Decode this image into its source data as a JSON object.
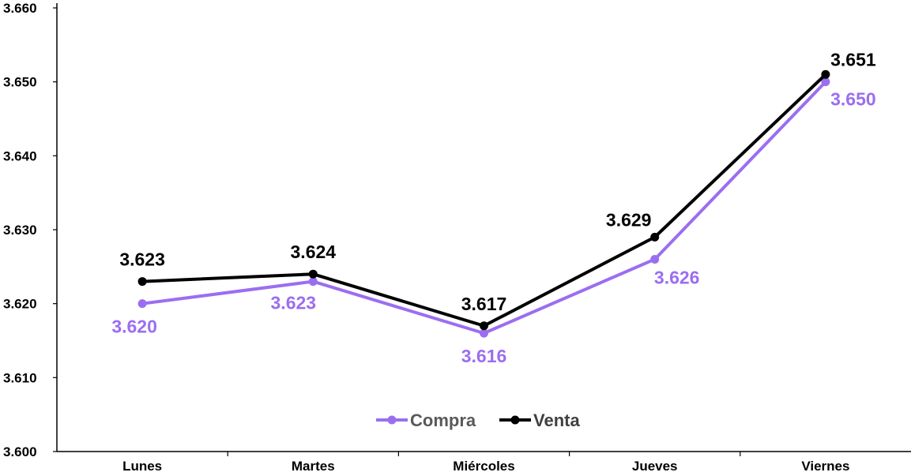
{
  "chart_data": {
    "type": "line",
    "categories": [
      "Lunes",
      "Martes",
      "Miércoles",
      "Jueves",
      "Viernes"
    ],
    "series": [
      {
        "name": "Compra",
        "values": [
          3.62,
          3.623,
          3.616,
          3.626,
          3.65
        ],
        "labels": [
          "3.620",
          "3.623",
          "3.616",
          "3.626",
          "3.650"
        ],
        "label_position": "below",
        "color": "#9b6ef0"
      },
      {
        "name": "Venta",
        "values": [
          3.623,
          3.624,
          3.617,
          3.629,
          3.651
        ],
        "labels": [
          "3.623",
          "3.624",
          "3.617",
          "3.629",
          "3.651"
        ],
        "label_position": "above",
        "color": "#000000"
      }
    ],
    "yticks": [
      "3.600",
      "3.610",
      "3.620",
      "3.630",
      "3.640",
      "3.650",
      "3.660"
    ],
    "ylim": [
      3.6,
      3.66
    ],
    "grid": false,
    "legend": "bottom-center",
    "title": "",
    "xlabel": "",
    "ylabel": ""
  }
}
